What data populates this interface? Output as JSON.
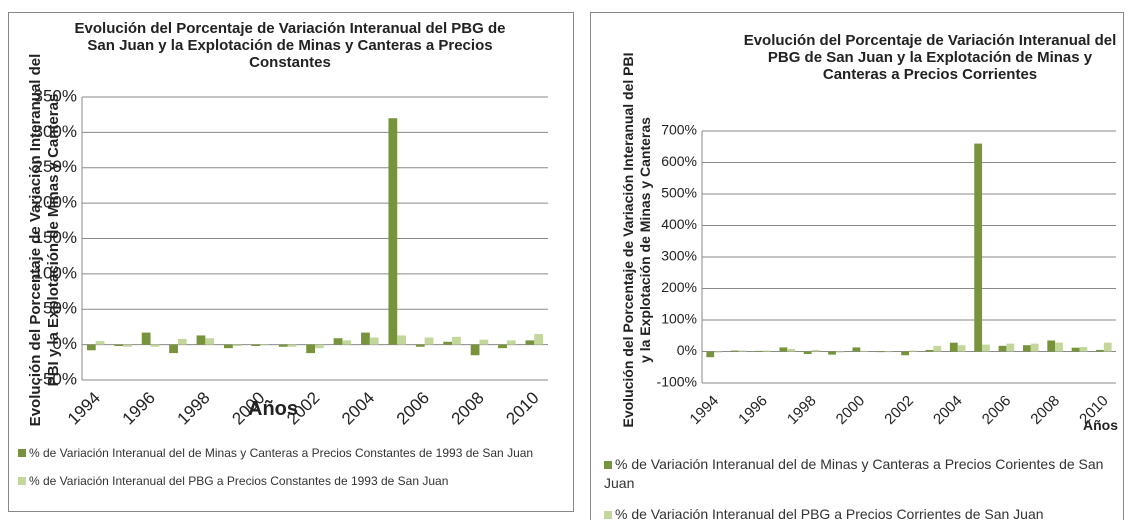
{
  "chart_data": [
    {
      "type": "bar",
      "title": "Evolución del Porcentaje de Variación Interanual del PBG de  San Juan y la Explotación de Minas y Canteras a Precios Constantes",
      "y_label": "Evolución del Porcentaje de Variación Interanual del PBI y la Explotación de Minas y Canteras",
      "x_label": "Años",
      "categories": [
        "1994",
        null,
        "1996",
        null,
        "1998",
        null,
        "2000",
        null,
        "2002",
        null,
        "2004",
        null,
        "2006",
        null,
        "2008",
        null,
        "2010"
      ],
      "series": [
        {
          "name": "% de Variación  Interanual del de Minas y Canteras a Precios Constantes de 1993 de San Juan",
          "color": "#77933c",
          "values": [
            -8,
            -2,
            17,
            -12,
            13,
            -5,
            -2,
            -3,
            -12,
            9,
            17,
            320,
            -3,
            4,
            -15,
            -5,
            6
          ]
        },
        {
          "name": "% de Variación Interanual del PBG a Precios Constantes de 1993 de San Juan",
          "color": "#c3d69b",
          "values": [
            5,
            -3,
            -3,
            8,
            9,
            -2,
            -1,
            -3,
            -5,
            6,
            10,
            13,
            10,
            11,
            7,
            6,
            15
          ]
        }
      ],
      "ylim": [
        -50,
        350
      ],
      "yticks": [
        {
          "value": -50,
          "label": "-50%"
        },
        {
          "value": 0,
          "label": "0%"
        },
        {
          "value": 50,
          "label": "50%"
        },
        {
          "value": 100,
          "label": "100%"
        },
        {
          "value": 150,
          "label": "150%"
        },
        {
          "value": 200,
          "label": "200%"
        },
        {
          "value": 250,
          "label": "250%"
        },
        {
          "value": 300,
          "label": "300%"
        },
        {
          "value": 350,
          "label": "350%"
        }
      ],
      "grid": true
    },
    {
      "type": "bar",
      "title": "Evolución del Porcentaje de Variación Interanual del PBG de  San Juan y la Explotación de Minas y Canteras a Precios Corrientes",
      "y_label": "Evolución del Porcentaje de Variación Interanual del PBI y la Explotación de Minas y Canteras",
      "x_label": "Años",
      "categories": [
        "1994",
        null,
        "1996",
        null,
        "1998",
        null,
        "2000",
        null,
        "2002",
        null,
        "2004",
        null,
        "2006",
        null,
        "2008",
        null,
        "2010"
      ],
      "series": [
        {
          "name": "% de Variación  Interanual del de Minas y Canteras a Precios Corientes de San Juan",
          "color": "#77933c",
          "values": [
            -18,
            3,
            2,
            13,
            -8,
            -10,
            13,
            -2,
            -12,
            5,
            28,
            660,
            18,
            20,
            35,
            12,
            5
          ]
        },
        {
          "name": "% de Variación Interanual del PBG a Precios Corrientes de San Juan",
          "color": "#c3d69b",
          "values": [
            -3,
            3,
            3,
            8,
            5,
            -3,
            2,
            -2,
            3,
            18,
            20,
            22,
            25,
            25,
            28,
            14,
            28
          ]
        }
      ],
      "ylim": [
        -100,
        700
      ],
      "yticks": [
        {
          "value": -100,
          "label": "-100%"
        },
        {
          "value": 0,
          "label": "0%"
        },
        {
          "value": 100,
          "label": "100%"
        },
        {
          "value": 200,
          "label": "200%"
        },
        {
          "value": 300,
          "label": "300%"
        },
        {
          "value": 400,
          "label": "400%"
        },
        {
          "value": 500,
          "label": "500%"
        },
        {
          "value": 600,
          "label": "600%"
        },
        {
          "value": 700,
          "label": "700%"
        }
      ],
      "grid": true
    }
  ]
}
